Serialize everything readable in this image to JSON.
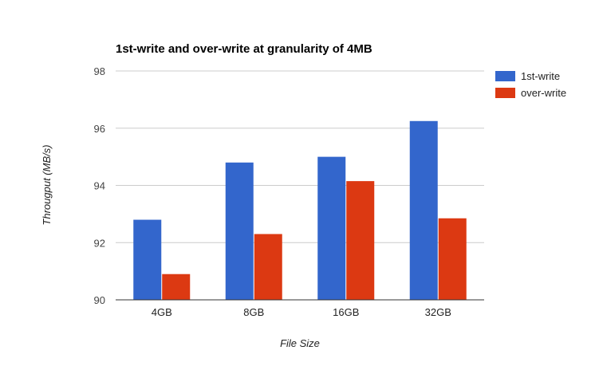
{
  "chart_data": {
    "type": "bar",
    "title": "1st-write and over-write at granularity of 4MB",
    "xlabel": "File Size",
    "ylabel": "Througput (MB/s)",
    "categories": [
      "4GB",
      "8GB",
      "16GB",
      "32GB"
    ],
    "series": [
      {
        "name": "1st-write",
        "values": [
          92.8,
          94.8,
          95.0,
          96.25
        ],
        "color": "#3366cc"
      },
      {
        "name": "over-write",
        "values": [
          90.9,
          92.3,
          94.15,
          92.85
        ],
        "color": "#dc3912"
      }
    ],
    "ylim": [
      90,
      98
    ],
    "yticks": [
      "90",
      "92",
      "94",
      "96",
      "98"
    ],
    "grid": true,
    "legend": "right"
  }
}
